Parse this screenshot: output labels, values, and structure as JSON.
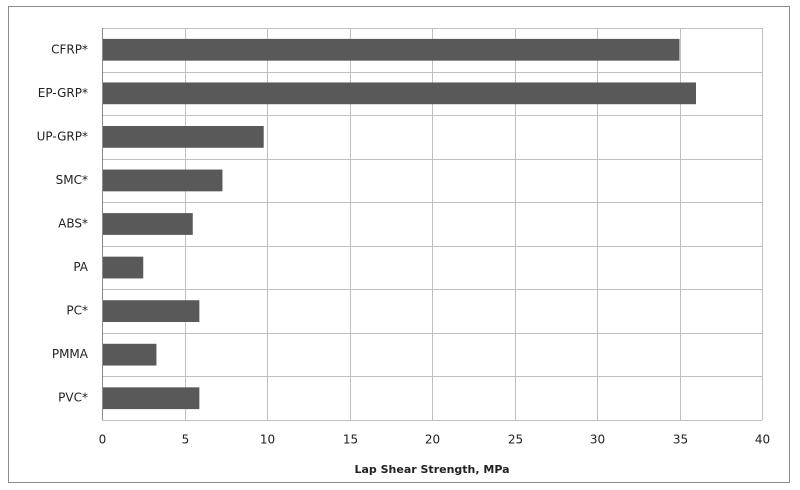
{
  "chart_data": {
    "type": "bar",
    "orientation": "horizontal",
    "x_label": "Lap Shear Strength, MPa",
    "categories": [
      "CFRP*",
      "EP-GRP*",
      "UP-GRP*",
      "SMC*",
      "ABS*",
      "PA",
      "PC*",
      "PMMA",
      "PVC*"
    ],
    "values": [
      35,
      36,
      9.8,
      7.3,
      5.5,
      2.5,
      5.9,
      3.3,
      5.9
    ],
    "color": "#595959",
    "xlim": [
      0,
      40
    ],
    "xticks": [
      0,
      5,
      10,
      15,
      20,
      25,
      30,
      35,
      40
    ],
    "grid": true
  }
}
